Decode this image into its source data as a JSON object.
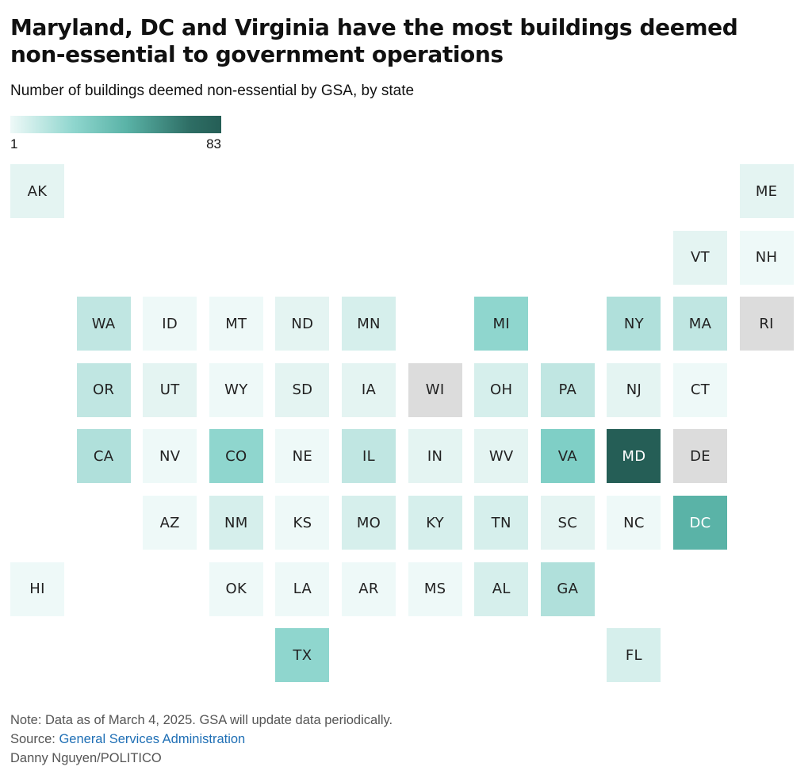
{
  "title": "Maryland, DC and Virginia have the most buildings deemed non-essential to government operations",
  "subtitle": "Number of buildings deemed non-essential by GSA, by state",
  "legend": {
    "min_label": "1",
    "max_label": "83"
  },
  "footer": {
    "note": "Note: Data as of March 4, 2025. GSA will update data periodically.",
    "source_prefix": "Source: ",
    "source_link": "General Services Administration",
    "credit": "Danny Nguyen/POLITICO"
  },
  "colors": {
    "no_data": "#dcdcdc",
    "level_1": "#eef9f8",
    "level_2": "#e4f4f2",
    "level_3": "#d6efec",
    "level_4": "#c0e6e2",
    "level_5": "#b0e0db",
    "level_6": "#8fd6ce",
    "level_7": "#7fcfc6",
    "level_8": "#5ab3a7",
    "level_9": "#255e56"
  },
  "chart_data": {
    "type": "heatmap",
    "legend_range": [
      1,
      83
    ],
    "states": [
      {
        "abbr": "AK",
        "level": 2,
        "row": 0,
        "col": 0
      },
      {
        "abbr": "ME",
        "level": 2,
        "row": 0,
        "col": 11
      },
      {
        "abbr": "VT",
        "level": 2,
        "row": 1,
        "col": 10
      },
      {
        "abbr": "NH",
        "level": 1,
        "row": 1,
        "col": 11
      },
      {
        "abbr": "WA",
        "level": 4,
        "row": 2,
        "col": 1
      },
      {
        "abbr": "ID",
        "level": 1,
        "row": 2,
        "col": 2
      },
      {
        "abbr": "MT",
        "level": 1,
        "row": 2,
        "col": 3
      },
      {
        "abbr": "ND",
        "level": 2,
        "row": 2,
        "col": 4
      },
      {
        "abbr": "MN",
        "level": 3,
        "row": 2,
        "col": 5
      },
      {
        "abbr": "MI",
        "level": 6,
        "row": 2,
        "col": 7
      },
      {
        "abbr": "NY",
        "level": 5,
        "row": 2,
        "col": 9
      },
      {
        "abbr": "MA",
        "level": 4,
        "row": 2,
        "col": 10
      },
      {
        "abbr": "RI",
        "level": 0,
        "row": 2,
        "col": 11
      },
      {
        "abbr": "OR",
        "level": 4,
        "row": 3,
        "col": 1
      },
      {
        "abbr": "UT",
        "level": 2,
        "row": 3,
        "col": 2
      },
      {
        "abbr": "WY",
        "level": 1,
        "row": 3,
        "col": 3
      },
      {
        "abbr": "SD",
        "level": 2,
        "row": 3,
        "col": 4
      },
      {
        "abbr": "IA",
        "level": 2,
        "row": 3,
        "col": 5
      },
      {
        "abbr": "WI",
        "level": 0,
        "row": 3,
        "col": 6
      },
      {
        "abbr": "OH",
        "level": 3,
        "row": 3,
        "col": 7
      },
      {
        "abbr": "PA",
        "level": 4,
        "row": 3,
        "col": 8
      },
      {
        "abbr": "NJ",
        "level": 2,
        "row": 3,
        "col": 9
      },
      {
        "abbr": "CT",
        "level": 1,
        "row": 3,
        "col": 10
      },
      {
        "abbr": "CA",
        "level": 5,
        "row": 4,
        "col": 1
      },
      {
        "abbr": "NV",
        "level": 1,
        "row": 4,
        "col": 2
      },
      {
        "abbr": "CO",
        "level": 6,
        "row": 4,
        "col": 3
      },
      {
        "abbr": "NE",
        "level": 1,
        "row": 4,
        "col": 4
      },
      {
        "abbr": "IL",
        "level": 4,
        "row": 4,
        "col": 5
      },
      {
        "abbr": "IN",
        "level": 2,
        "row": 4,
        "col": 6
      },
      {
        "abbr": "WV",
        "level": 2,
        "row": 4,
        "col": 7
      },
      {
        "abbr": "VA",
        "level": 7,
        "row": 4,
        "col": 8
      },
      {
        "abbr": "MD",
        "level": 9,
        "row": 4,
        "col": 9
      },
      {
        "abbr": "DE",
        "level": 0,
        "row": 4,
        "col": 10
      },
      {
        "abbr": "AZ",
        "level": 1,
        "row": 5,
        "col": 2
      },
      {
        "abbr": "NM",
        "level": 3,
        "row": 5,
        "col": 3
      },
      {
        "abbr": "KS",
        "level": 1,
        "row": 5,
        "col": 4
      },
      {
        "abbr": "MO",
        "level": 3,
        "row": 5,
        "col": 5
      },
      {
        "abbr": "KY",
        "level": 3,
        "row": 5,
        "col": 6
      },
      {
        "abbr": "TN",
        "level": 3,
        "row": 5,
        "col": 7
      },
      {
        "abbr": "SC",
        "level": 2,
        "row": 5,
        "col": 8
      },
      {
        "abbr": "NC",
        "level": 1,
        "row": 5,
        "col": 9
      },
      {
        "abbr": "DC",
        "level": 8,
        "row": 5,
        "col": 10
      },
      {
        "abbr": "HI",
        "level": 1,
        "row": 6,
        "col": 0
      },
      {
        "abbr": "OK",
        "level": 1,
        "row": 6,
        "col": 3
      },
      {
        "abbr": "LA",
        "level": 1,
        "row": 6,
        "col": 4
      },
      {
        "abbr": "AR",
        "level": 1,
        "row": 6,
        "col": 5
      },
      {
        "abbr": "MS",
        "level": 1,
        "row": 6,
        "col": 6
      },
      {
        "abbr": "AL",
        "level": 3,
        "row": 6,
        "col": 7
      },
      {
        "abbr": "GA",
        "level": 5,
        "row": 6,
        "col": 8
      },
      {
        "abbr": "TX",
        "level": 6,
        "row": 7,
        "col": 4
      },
      {
        "abbr": "FL",
        "level": 3,
        "row": 7,
        "col": 9
      }
    ]
  }
}
